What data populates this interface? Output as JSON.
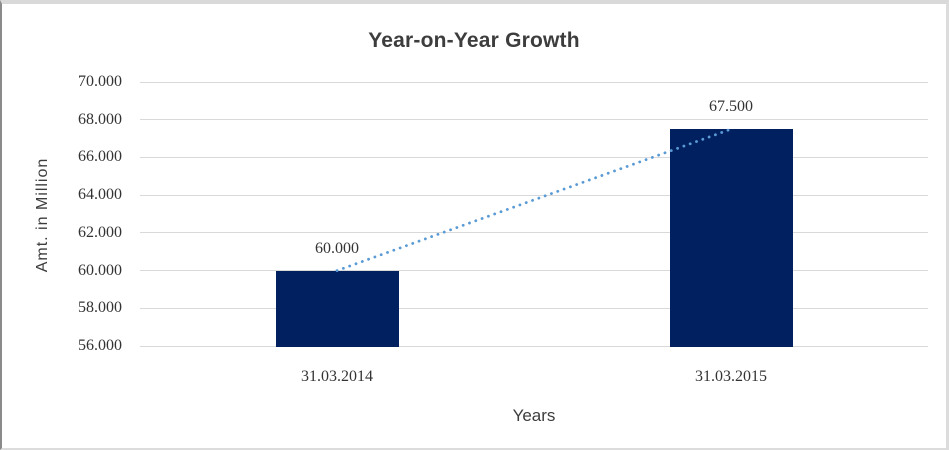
{
  "chart_data": {
    "type": "bar",
    "title": "Year-on-Year Growth",
    "xlabel": "Years",
    "ylabel": "Amt. in Million",
    "categories": [
      "31.03.2014",
      "31.03.2015"
    ],
    "values": [
      60000,
      67500
    ],
    "data_labels": [
      "60.000",
      "67.500"
    ],
    "ylim": [
      56000,
      70000
    ],
    "yticks": [
      {
        "value": 56000,
        "label": "56.000"
      },
      {
        "value": 58000,
        "label": "58.000"
      },
      {
        "value": 60000,
        "label": "60.000"
      },
      {
        "value": 62000,
        "label": "62.000"
      },
      {
        "value": 64000,
        "label": "64.000"
      },
      {
        "value": 66000,
        "label": "66.000"
      },
      {
        "value": 68000,
        "label": "68.000"
      },
      {
        "value": 70000,
        "label": "70.000"
      }
    ],
    "grid": true,
    "legend": false,
    "trendline": {
      "style": "dotted",
      "from_category_index": 0,
      "from_value": 60000,
      "to_category_index": 1,
      "to_value": 67500
    },
    "colors": {
      "bar": "#002060",
      "trendline": "#5B9BD5",
      "gridline": "#D9D9D9",
      "title_text": "#3D3D3D",
      "tick_text": "#333333"
    }
  }
}
